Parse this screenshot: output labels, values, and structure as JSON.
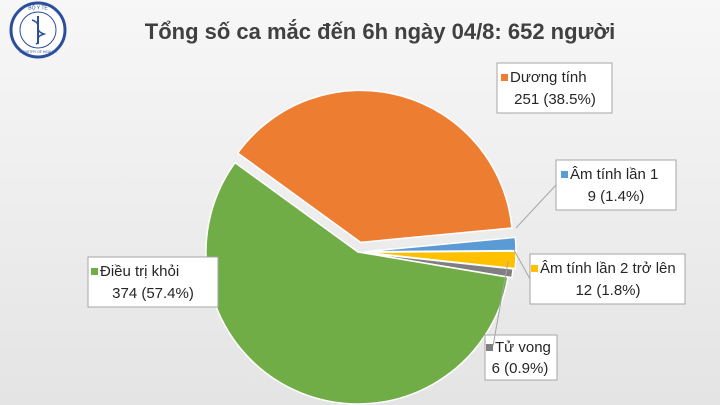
{
  "chart_data": {
    "type": "pie",
    "title": "Tổng số ca mắc đến 6h ngày 04/8: 652 người",
    "logo": {
      "top": "BỘ Y TẾ",
      "bottom": "MINISTRY OF HEALTH"
    },
    "categories": [
      "Dương tính",
      "Âm tính lần 1",
      "Âm tính lần 2 trở lên",
      "Tử vong",
      "Điều trị khỏi"
    ],
    "values": [
      251,
      9,
      12,
      6,
      374
    ],
    "value_labels": [
      "251 (38.5%)",
      "9 (1.4%)",
      "12 (1.8%)",
      "6 (0.9%)",
      "374 (57.4%)"
    ],
    "colors": [
      "#ed7d31",
      "#5b9bd5",
      "#ffc000",
      "#7f7f7f",
      "#70ad47"
    ]
  }
}
